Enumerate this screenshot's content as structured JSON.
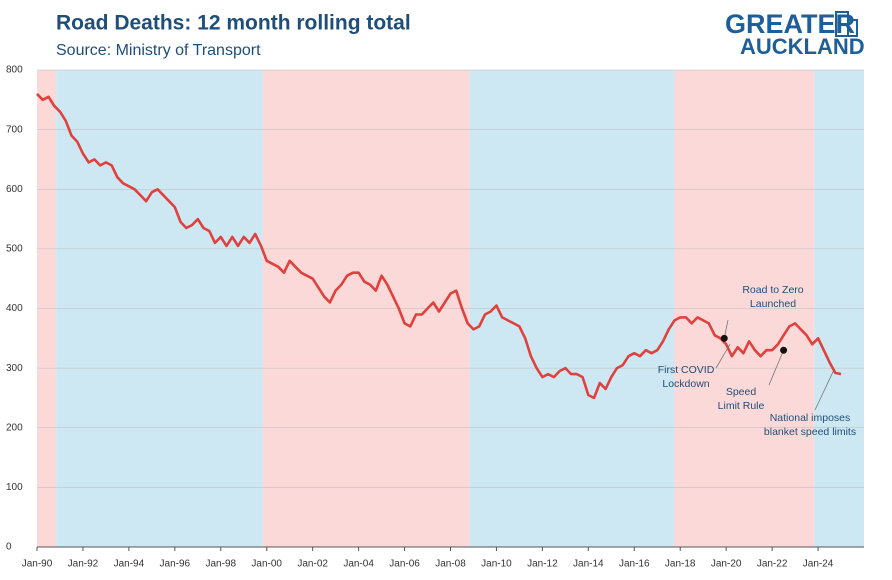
{
  "chart_data": {
    "type": "line",
    "title": "Road Deaths: 12 month rolling total",
    "subtitle": "Source: Ministry of Transport",
    "logo": [
      "GREATER",
      "AUCKLAND"
    ],
    "x": [
      "1990-01",
      "1990-04",
      "1990-07",
      "1990-10",
      "1991-01",
      "1991-04",
      "1991-07",
      "1991-10",
      "1992-01",
      "1992-04",
      "1992-07",
      "1992-10",
      "1993-01",
      "1993-04",
      "1993-07",
      "1993-10",
      "1994-01",
      "1994-04",
      "1994-07",
      "1994-10",
      "1995-01",
      "1995-04",
      "1995-07",
      "1995-10",
      "1996-01",
      "1996-04",
      "1996-07",
      "1996-10",
      "1997-01",
      "1997-04",
      "1997-07",
      "1997-10",
      "1998-01",
      "1998-04",
      "1998-07",
      "1998-10",
      "1999-01",
      "1999-04",
      "1999-07",
      "1999-10",
      "2000-01",
      "2000-04",
      "2000-07",
      "2000-10",
      "2001-01",
      "2001-04",
      "2001-07",
      "2001-10",
      "2002-01",
      "2002-04",
      "2002-07",
      "2002-10",
      "2003-01",
      "2003-04",
      "2003-07",
      "2003-10",
      "2004-01",
      "2004-04",
      "2004-07",
      "2004-10",
      "2005-01",
      "2005-04",
      "2005-07",
      "2005-10",
      "2006-01",
      "2006-04",
      "2006-07",
      "2006-10",
      "2007-01",
      "2007-04",
      "2007-07",
      "2007-10",
      "2008-01",
      "2008-04",
      "2008-07",
      "2008-10",
      "2009-01",
      "2009-04",
      "2009-07",
      "2009-10",
      "2010-01",
      "2010-04",
      "2010-07",
      "2010-10",
      "2011-01",
      "2011-04",
      "2011-07",
      "2011-10",
      "2012-01",
      "2012-04",
      "2012-07",
      "2012-10",
      "2013-01",
      "2013-04",
      "2013-07",
      "2013-10",
      "2014-01",
      "2014-04",
      "2014-07",
      "2014-10",
      "2015-01",
      "2015-04",
      "2015-07",
      "2015-10",
      "2016-01",
      "2016-04",
      "2016-07",
      "2016-10",
      "2017-01",
      "2017-04",
      "2017-07",
      "2017-10",
      "2018-01",
      "2018-04",
      "2018-07",
      "2018-10",
      "2019-01",
      "2019-04",
      "2019-07",
      "2019-10",
      "2020-01",
      "2020-04",
      "2020-07",
      "2020-10",
      "2021-01",
      "2021-04",
      "2021-07",
      "2021-10",
      "2022-01",
      "2022-04",
      "2022-07",
      "2022-10",
      "2023-01",
      "2023-04",
      "2023-07",
      "2023-10",
      "2024-01",
      "2024-04",
      "2024-07",
      "2024-10",
      "2025-01"
    ],
    "series": [
      {
        "name": "Road deaths",
        "color": "#e0413c",
        "values": [
          760,
          750,
          755,
          740,
          730,
          715,
          690,
          680,
          660,
          645,
          650,
          640,
          645,
          640,
          620,
          610,
          605,
          600,
          590,
          580,
          595,
          600,
          590,
          580,
          570,
          545,
          535,
          540,
          550,
          535,
          530,
          510,
          520,
          505,
          520,
          505,
          520,
          510,
          525,
          505,
          480,
          475,
          470,
          460,
          480,
          470,
          460,
          455,
          450,
          435,
          420,
          410,
          430,
          440,
          455,
          460,
          460,
          445,
          440,
          430,
          455,
          440,
          420,
          400,
          375,
          370,
          390,
          390,
          400,
          410,
          395,
          410,
          425,
          430,
          400,
          375,
          365,
          370,
          390,
          395,
          405,
          385,
          380,
          375,
          370,
          350,
          320,
          300,
          285,
          290,
          285,
          295,
          300,
          290,
          290,
          285,
          255,
          250,
          275,
          265,
          285,
          300,
          305,
          320,
          325,
          320,
          330,
          325,
          330,
          345,
          365,
          380,
          385,
          385,
          375,
          385,
          380,
          375,
          355,
          350,
          340,
          320,
          335,
          325,
          345,
          330,
          320,
          330,
          330,
          340,
          355,
          370,
          375,
          365,
          355,
          340,
          350,
          330,
          310,
          292,
          290
        ]
      }
    ],
    "periods": [
      {
        "start": "1990-01",
        "end": "1990-11",
        "color": "#fcd9d9"
      },
      {
        "start": "1990-11",
        "end": "1999-11",
        "color": "#cde8f3"
      },
      {
        "start": "1999-11",
        "end": "2008-11",
        "color": "#fcd9d9"
      },
      {
        "start": "2008-11",
        "end": "2017-10",
        "color": "#cde8f3"
      },
      {
        "start": "2017-10",
        "end": "2023-11",
        "color": "#fcd9d9"
      },
      {
        "start": "2023-11",
        "end": "2026-01",
        "color": "#cde8f3"
      }
    ],
    "annotations": [
      {
        "text": [
          "Road to Zero",
          "Launched"
        ],
        "x": "2019-12",
        "y": 350
      },
      {
        "text": [
          "First COVID",
          "Lockdown"
        ],
        "x": "2020-03",
        "y": 340
      },
      {
        "text": [
          "Speed",
          "Limit Rule"
        ],
        "x": "2022-07",
        "y": 330
      },
      {
        "text": [
          "National imposes",
          "blanket speed limits"
        ],
        "x": "2024-09",
        "y": 295
      }
    ],
    "xlim": [
      "1990-01",
      "2026-01"
    ],
    "xticks": [
      {
        "value": "1990-01",
        "label": "Jan-90"
      },
      {
        "value": "1992-01",
        "label": "Jan-92"
      },
      {
        "value": "1994-01",
        "label": "Jan-94"
      },
      {
        "value": "1996-01",
        "label": "Jan-96"
      },
      {
        "value": "1998-01",
        "label": "Jan-98"
      },
      {
        "value": "2000-01",
        "label": "Jan-00"
      },
      {
        "value": "2002-01",
        "label": "Jan-02"
      },
      {
        "value": "2004-01",
        "label": "Jan-04"
      },
      {
        "value": "2006-01",
        "label": "Jan-06"
      },
      {
        "value": "2008-01",
        "label": "Jan-08"
      },
      {
        "value": "2010-01",
        "label": "Jan-10"
      },
      {
        "value": "2012-01",
        "label": "Jan-12"
      },
      {
        "value": "2014-01",
        "label": "Jan-14"
      },
      {
        "value": "2016-01",
        "label": "Jan-16"
      },
      {
        "value": "2018-01",
        "label": "Jan-18"
      },
      {
        "value": "2020-01",
        "label": "Jan-20"
      },
      {
        "value": "2022-01",
        "label": "Jan-22"
      },
      {
        "value": "2024-01",
        "label": "Jan-24"
      }
    ],
    "ylim": [
      0,
      800
    ],
    "yticks": [
      0,
      100,
      200,
      300,
      400,
      500,
      600,
      700,
      800
    ],
    "grid": true
  }
}
